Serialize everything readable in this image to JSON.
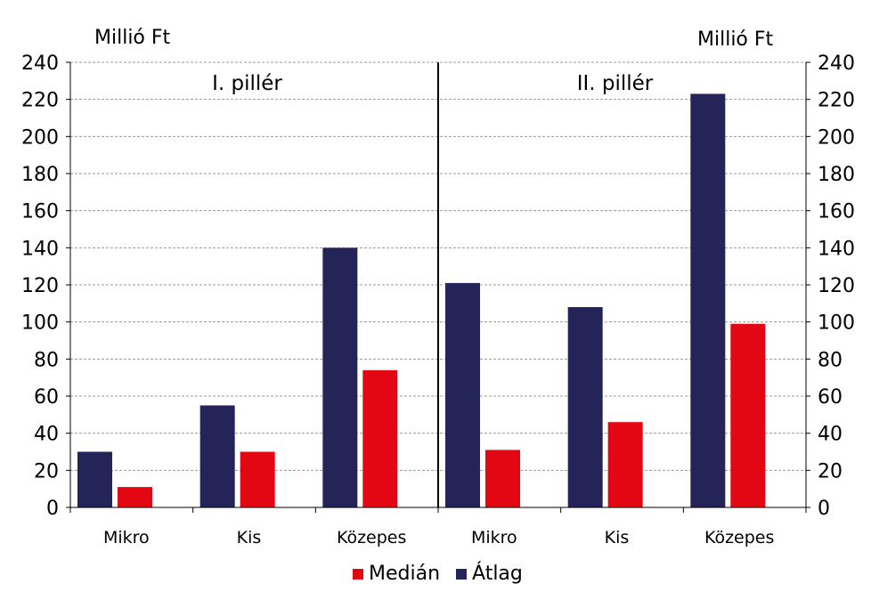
{
  "y_unit_left": "Millió Ft",
  "y_unit_right": "Millió Ft",
  "legend": [
    {
      "label": "Medián",
      "color": "#e30613"
    },
    {
      "label": "Átlag",
      "color": "#252458"
    }
  ],
  "chart_data": {
    "type": "bar",
    "ylim": [
      0,
      240
    ],
    "yticks": [
      0,
      20,
      40,
      60,
      80,
      100,
      120,
      140,
      160,
      180,
      200,
      220,
      240
    ],
    "grid": true,
    "legend_position": "bottom",
    "panels": [
      {
        "title": "I. pillér",
        "categories": [
          "Mikro",
          "Kis",
          "Közepes"
        ],
        "series": [
          {
            "name": "Átlag",
            "color": "#252458",
            "values": [
              30,
              55,
              140
            ]
          },
          {
            "name": "Medián",
            "color": "#e30613",
            "values": [
              11,
              30,
              74
            ]
          }
        ]
      },
      {
        "title": "II. pillér",
        "categories": [
          "Mikro",
          "Kis",
          "Közepes"
        ],
        "series": [
          {
            "name": "Átlag",
            "color": "#252458",
            "values": [
              121,
              108,
              223
            ]
          },
          {
            "name": "Medián",
            "color": "#e30613",
            "values": [
              31,
              46,
              99
            ]
          }
        ]
      }
    ]
  }
}
